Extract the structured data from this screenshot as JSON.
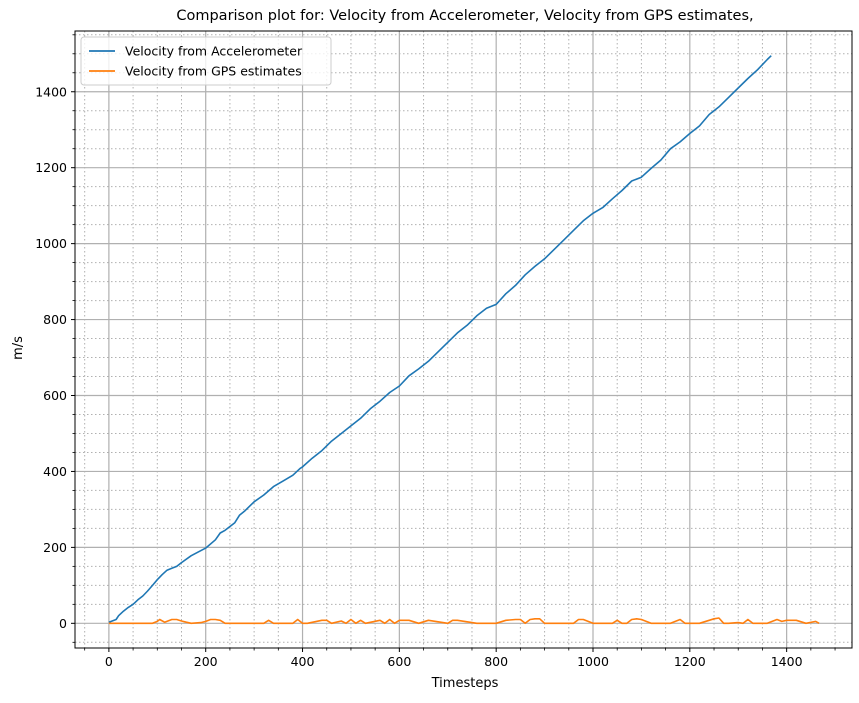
{
  "chart_data": {
    "type": "line",
    "title": "Comparison plot for: Velocity from Accelerometer, Velocity from GPS estimates,",
    "xlabel": "Timesteps",
    "ylabel": "m/s",
    "xlim": [
      -70,
      1535
    ],
    "ylim": [
      -65,
      1560
    ],
    "xticks": [
      0,
      200,
      400,
      600,
      800,
      1000,
      1200,
      1400
    ],
    "yticks": [
      0,
      200,
      400,
      600,
      800,
      1000,
      1200,
      1400
    ],
    "xtick_labels": [
      "0",
      "200",
      "400",
      "600",
      "800",
      "1000",
      "1200",
      "1400"
    ],
    "ytick_labels": [
      "0",
      "200",
      "400",
      "600",
      "800",
      "1000",
      "1200",
      "1400"
    ],
    "x_minor_step": 50,
    "y_minor_step": 50,
    "grid": true,
    "grid_minor": true,
    "legend_position": "upper left",
    "series": [
      {
        "name": "Velocity from Accelerometer",
        "color": "#1f77b4",
        "x": [
          0,
          15,
          20,
          30,
          40,
          50,
          60,
          70,
          80,
          90,
          100,
          110,
          120,
          130,
          140,
          150,
          170,
          200,
          220,
          230,
          240,
          260,
          270,
          280,
          300,
          320,
          340,
          360,
          380,
          395,
          400,
          420,
          440,
          460,
          480,
          500,
          520,
          540,
          560,
          580,
          600,
          620,
          640,
          660,
          680,
          700,
          720,
          740,
          760,
          780,
          800,
          820,
          840,
          860,
          880,
          900,
          920,
          940,
          960,
          980,
          1000,
          1020,
          1040,
          1060,
          1080,
          1100,
          1120,
          1140,
          1160,
          1180,
          1200,
          1220,
          1240,
          1260,
          1280,
          1300,
          1320,
          1340,
          1360,
          1368
        ],
        "y": [
          3,
          10,
          20,
          32,
          42,
          50,
          62,
          72,
          85,
          100,
          115,
          128,
          140,
          145,
          150,
          160,
          178,
          198,
          220,
          238,
          245,
          265,
          285,
          295,
          320,
          338,
          360,
          375,
          390,
          408,
          412,
          435,
          455,
          480,
          500,
          520,
          540,
          565,
          585,
          608,
          625,
          652,
          670,
          690,
          715,
          740,
          765,
          785,
          810,
          830,
          840,
          868,
          890,
          918,
          940,
          960,
          985,
          1010,
          1035,
          1060,
          1080,
          1095,
          1118,
          1140,
          1165,
          1175,
          1198,
          1220,
          1250,
          1268,
          1290,
          1310,
          1340,
          1360,
          1385,
          1410,
          1435,
          1458,
          1485,
          1495
        ]
      },
      {
        "name": "Velocity from GPS estimates",
        "color": "#ff7f0e",
        "x": [
          0,
          90,
          100,
          105,
          115,
          130,
          140,
          150,
          160,
          170,
          190,
          200,
          210,
          220,
          230,
          240,
          300,
          320,
          330,
          340,
          380,
          390,
          400,
          410,
          440,
          450,
          460,
          480,
          490,
          500,
          510,
          520,
          530,
          560,
          570,
          580,
          590,
          600,
          620,
          640,
          660,
          700,
          710,
          720,
          760,
          800,
          820,
          840,
          850,
          860,
          870,
          880,
          890,
          900,
          960,
          970,
          980,
          1000,
          1040,
          1050,
          1060,
          1070,
          1080,
          1090,
          1100,
          1120,
          1140,
          1160,
          1180,
          1190,
          1200,
          1220,
          1240,
          1250,
          1260,
          1270,
          1280,
          1300,
          1310,
          1320,
          1330,
          1340,
          1360,
          1380,
          1390,
          1400,
          1420,
          1440,
          1460,
          1467
        ],
        "y": [
          0,
          0,
          5,
          10,
          3,
          10,
          10,
          6,
          3,
          0,
          2,
          5,
          10,
          10,
          8,
          0,
          0,
          0,
          8,
          0,
          0,
          10,
          0,
          0,
          8,
          8,
          0,
          6,
          0,
          10,
          0,
          8,
          0,
          8,
          0,
          10,
          0,
          8,
          8,
          0,
          8,
          0,
          8,
          8,
          0,
          0,
          8,
          10,
          10,
          0,
          10,
          12,
          12,
          0,
          0,
          10,
          10,
          0,
          0,
          8,
          0,
          0,
          10,
          12,
          10,
          0,
          0,
          0,
          10,
          0,
          0,
          0,
          8,
          12,
          14,
          0,
          0,
          2,
          0,
          10,
          0,
          0,
          0,
          10,
          5,
          8,
          8,
          0,
          5,
          0
        ]
      }
    ]
  }
}
